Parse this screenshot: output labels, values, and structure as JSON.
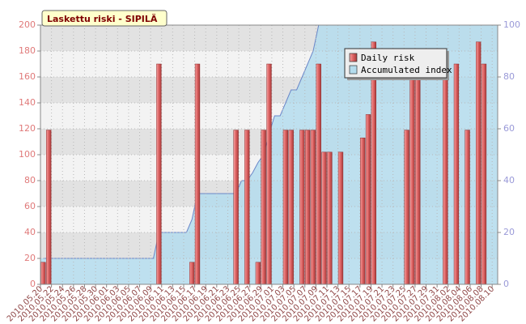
{
  "chart_data": {
    "type": "bar",
    "title": "Laskettu riski - SIPILÄ",
    "categories": [
      "2010.05.20",
      null,
      "2010.05.22",
      null,
      "2010.05.24",
      null,
      "2010.05.26",
      null,
      "2010.05.28",
      null,
      "2010.05.30",
      null,
      "2010.06.01",
      null,
      "2010.06.03",
      null,
      "2010.06.05",
      null,
      "2010.06.07",
      null,
      "2010.06.09",
      null,
      "2010.06.11",
      null,
      "2010.06.13",
      null,
      "2010.06.15",
      null,
      "2010.06.17",
      null,
      "2010.06.19",
      null,
      "2010.06.21",
      null,
      "2010.06.23",
      null,
      "2010.06.25",
      null,
      "2010.06.27",
      null,
      "2010.06.29",
      null,
      "2010.07.01",
      null,
      "2010.07.03",
      null,
      "2010.07.05",
      null,
      "2010.07.07",
      null,
      "2010.07.09",
      null,
      "2010.07.11",
      null,
      "2010.07.13",
      null,
      "2010.07.15",
      null,
      "2010.07.17",
      null,
      "2010.07.19",
      null,
      "2010.07.21",
      null,
      "2010.07.23",
      null,
      "2010.07.25",
      null,
      "2010.07.27",
      null,
      "2010.07.29",
      null,
      "2010.07.31",
      null,
      "2010.08.02",
      null,
      "2010.08.04",
      null,
      "2010.08.06",
      null,
      "2010.08.08",
      null,
      "2010.08.10"
    ],
    "series": [
      {
        "name": "Daily risk",
        "type": "bar",
        "color": "#e06666",
        "values": [
          17,
          119,
          0,
          0,
          0,
          0,
          0,
          0,
          0,
          0,
          0,
          0,
          0,
          0,
          0,
          0,
          0,
          0,
          0,
          0,
          0,
          170,
          0,
          0,
          0,
          0,
          0,
          17,
          170,
          0,
          0,
          0,
          0,
          0,
          0,
          119,
          0,
          119,
          0,
          17,
          119,
          170,
          0,
          0,
          119,
          119,
          0,
          119,
          119,
          119,
          170,
          102,
          102,
          0,
          102,
          0,
          0,
          0,
          113,
          131,
          187,
          0,
          0,
          0,
          0,
          0,
          119,
          170,
          170,
          0,
          0,
          0,
          0,
          170,
          0,
          170,
          0,
          119,
          0,
          187,
          170,
          0,
          0
        ]
      },
      {
        "name": "Accumulated index",
        "type": "area",
        "axis": "y2",
        "color": "#b4dced",
        "line_color": "#6a86c8",
        "values": [
          10,
          10,
          10,
          10,
          10,
          10,
          10,
          10,
          10,
          10,
          10,
          10,
          10,
          10,
          10,
          10,
          10,
          10,
          10,
          10,
          10,
          20,
          20,
          20,
          20,
          20,
          20,
          25,
          35,
          35,
          35,
          35,
          35,
          35,
          35,
          35,
          40,
          40,
          43,
          47,
          50,
          58,
          65,
          65,
          70,
          75,
          75,
          80,
          85,
          90,
          100,
          100,
          100,
          100,
          100,
          100,
          100,
          100,
          100,
          100,
          100,
          100,
          100,
          100,
          100,
          100,
          100,
          100,
          100,
          100,
          100,
          100,
          100,
          100,
          100,
          100,
          100,
          100,
          100,
          100,
          100,
          100,
          100
        ]
      }
    ],
    "ylim": [
      0,
      200
    ],
    "yticks": [
      0,
      20,
      40,
      60,
      80,
      100,
      120,
      140,
      160,
      180,
      200
    ],
    "y2lim": [
      0,
      100
    ],
    "y2ticks": [
      0,
      20,
      40,
      60,
      80,
      100
    ],
    "grid": true,
    "legend": "top-right"
  }
}
